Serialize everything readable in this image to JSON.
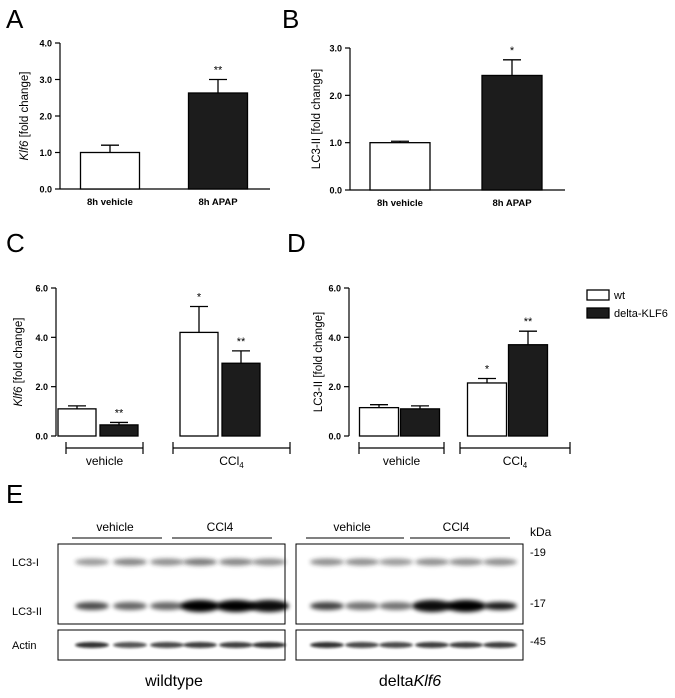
{
  "panel_letters": {
    "A": "A",
    "B": "B",
    "C": "C",
    "D": "D",
    "E": "E"
  },
  "chart_data": [
    {
      "panel": "A",
      "type": "bar",
      "ylabel_italic": "Klf6",
      "ylabel_rest": " [fold change]",
      "ylim": [
        0,
        4
      ],
      "yticks": [
        "0.0",
        "1.0",
        "2.0",
        "3.0",
        "4.0"
      ],
      "categories": [
        "8h vehicle",
        "8h APAP"
      ],
      "values": [
        1.0,
        2.63
      ],
      "errors": [
        0.2,
        0.37
      ],
      "fills": [
        "#ffffff",
        "#1c1c1c"
      ],
      "annotations": [
        "",
        "**"
      ]
    },
    {
      "panel": "B",
      "type": "bar",
      "ylabel_italic": "",
      "ylabel_rest": "LC3-II [fold change]",
      "ylim": [
        0,
        3
      ],
      "yticks": [
        "0.0",
        "1.0",
        "2.0",
        "3.0"
      ],
      "categories": [
        "8h vehicle",
        "8h APAP"
      ],
      "values": [
        1.0,
        2.42
      ],
      "errors": [
        0.03,
        0.33
      ],
      "fills": [
        "#ffffff",
        "#1c1c1c"
      ],
      "annotations": [
        "",
        "*"
      ]
    },
    {
      "panel": "C",
      "type": "bar",
      "ylabel_italic": "Klf6",
      "ylabel_rest": " [fold change]",
      "ylim": [
        0,
        6
      ],
      "yticks": [
        "0.0",
        "2.0",
        "4.0",
        "6.0"
      ],
      "groups": [
        "vehicle",
        "CCl4"
      ],
      "series": [
        {
          "name": "wt",
          "values": [
            1.1,
            4.2
          ],
          "errors": [
            0.12,
            1.05
          ],
          "annotations": [
            "",
            "*"
          ]
        },
        {
          "name": "delta-KLF6",
          "values": [
            0.45,
            2.95
          ],
          "errors": [
            0.1,
            0.5
          ],
          "annotations": [
            "**",
            "**"
          ]
        }
      ]
    },
    {
      "panel": "D",
      "type": "bar",
      "ylabel_italic": "",
      "ylabel_rest": "LC3-II [fold change]",
      "ylim": [
        0,
        6
      ],
      "yticks": [
        "0.0",
        "2.0",
        "4.0",
        "6.0"
      ],
      "groups": [
        "vehicle",
        "CCl4"
      ],
      "series": [
        {
          "name": "wt",
          "values": [
            1.15,
            2.15
          ],
          "errors": [
            0.12,
            0.18
          ],
          "annotations": [
            "",
            "*"
          ]
        },
        {
          "name": "delta-KLF6",
          "values": [
            1.1,
            3.7
          ],
          "errors": [
            0.12,
            0.55
          ],
          "annotations": [
            "",
            "**"
          ]
        }
      ]
    }
  ],
  "legend": {
    "items": [
      {
        "label": "wt",
        "fill": "#ffffff"
      },
      {
        "label": "delta-KLF6",
        "fill": "#1c1c1c"
      }
    ]
  },
  "blot": {
    "kda_label": "kDa",
    "markers": [
      "-19",
      "-17",
      "-45"
    ],
    "row_labels": [
      "LC3-I",
      "LC3-II",
      "Actin"
    ],
    "groups": [
      {
        "caption": "wildtype",
        "caption_italic": "",
        "lane_groups": [
          "vehicle",
          "CCl4"
        ]
      },
      {
        "caption": "delta",
        "caption_italic": "Klf6",
        "lane_groups": [
          "vehicle",
          "CCl4"
        ]
      }
    ]
  }
}
